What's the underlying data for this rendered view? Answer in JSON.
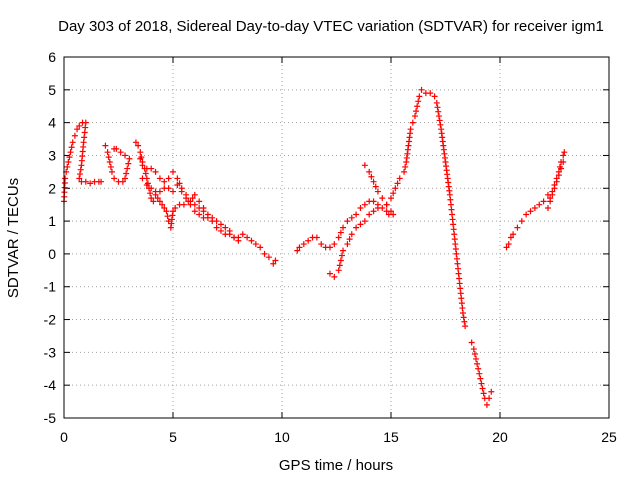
{
  "chart_data": {
    "type": "scatter",
    "title": "Day 303 of 2018, Sidereal Day-to-day VTEC variation (SDTVAR) for receiver igm1",
    "xlabel": "GPS time / hours",
    "ylabel": "SDTVAR / TECUs",
    "xlim": [
      0,
      25
    ],
    "ylim": [
      -5,
      6
    ],
    "x_ticks": [
      0,
      5,
      10,
      15,
      20,
      25
    ],
    "y_ticks": [
      -5,
      -4,
      -3,
      -2,
      -1,
      0,
      1,
      2,
      3,
      4,
      5,
      6
    ],
    "grid": true,
    "marker": "+",
    "color": "#ff0000",
    "series": [
      {
        "name": "SDTVAR",
        "segments": [
          [
            [
              0.0,
              1.6
            ],
            [
              0.05,
              2.3
            ],
            [
              0.1,
              2.5
            ],
            [
              0.2,
              2.8
            ],
            [
              0.3,
              3.1
            ],
            [
              0.4,
              3.4
            ],
            [
              0.5,
              3.6
            ],
            [
              0.6,
              3.8
            ],
            [
              0.7,
              3.9
            ],
            [
              0.85,
              4.0
            ],
            [
              1.0,
              4.0
            ],
            [
              0.9,
              3.4
            ],
            [
              0.8,
              2.7
            ],
            [
              0.7,
              2.3
            ],
            [
              0.8,
              2.2
            ],
            [
              1.0,
              2.2
            ],
            [
              1.2,
              2.15
            ],
            [
              1.4,
              2.2
            ],
            [
              1.6,
              2.2
            ],
            [
              1.7,
              2.2
            ]
          ],
          [
            [
              1.9,
              3.3
            ],
            [
              2.0,
              3.1
            ],
            [
              2.1,
              2.8
            ],
            [
              2.2,
              2.5
            ],
            [
              2.3,
              2.3
            ],
            [
              2.5,
              2.2
            ],
            [
              2.7,
              2.2
            ],
            [
              2.8,
              2.3
            ],
            [
              2.9,
              2.6
            ],
            [
              3.0,
              2.9
            ],
            [
              2.8,
              3.0
            ],
            [
              2.6,
              3.1
            ],
            [
              2.4,
              3.2
            ],
            [
              2.3,
              3.2
            ]
          ],
          [
            [
              3.3,
              3.4
            ],
            [
              3.4,
              3.3
            ],
            [
              3.5,
              3.1
            ],
            [
              3.6,
              2.8
            ],
            [
              3.7,
              2.6
            ],
            [
              3.8,
              2.3
            ],
            [
              3.9,
              2.0
            ],
            [
              4.0,
              1.7
            ],
            [
              4.1,
              1.6
            ],
            [
              4.2,
              1.8
            ],
            [
              4.3,
              1.7
            ],
            [
              4.4,
              1.6
            ],
            [
              4.5,
              1.5
            ],
            [
              4.6,
              1.4
            ],
            [
              4.7,
              1.3
            ],
            [
              4.8,
              1.0
            ],
            [
              4.9,
              0.8
            ],
            [
              5.0,
              1.3
            ],
            [
              5.1,
              1.4
            ],
            [
              5.3,
              1.5
            ],
            [
              5.5,
              1.5
            ],
            [
              5.7,
              1.6
            ],
            [
              5.9,
              1.7
            ],
            [
              6.0,
              1.8
            ],
            [
              6.2,
              1.6
            ],
            [
              6.4,
              1.4
            ],
            [
              6.6,
              1.2
            ],
            [
              6.8,
              1.1
            ],
            [
              7.0,
              1.0
            ],
            [
              7.2,
              0.9
            ],
            [
              7.4,
              0.8
            ],
            [
              7.6,
              0.7
            ],
            [
              7.8,
              0.5
            ],
            [
              8.0,
              0.5
            ],
            [
              8.2,
              0.6
            ],
            [
              8.4,
              0.5
            ],
            [
              8.6,
              0.4
            ],
            [
              8.8,
              0.3
            ],
            [
              9.0,
              0.2
            ],
            [
              9.2,
              0.0
            ],
            [
              9.4,
              -0.1
            ],
            [
              9.6,
              -0.3
            ],
            [
              9.7,
              -0.2
            ]
          ],
          [
            [
              3.5,
              2.9
            ],
            [
              3.6,
              2.7
            ],
            [
              3.8,
              2.6
            ],
            [
              4.0,
              2.6
            ],
            [
              4.2,
              2.5
            ],
            [
              4.4,
              2.3
            ],
            [
              4.6,
              2.2
            ],
            [
              4.8,
              2.3
            ],
            [
              5.0,
              2.5
            ],
            [
              5.2,
              2.3
            ],
            [
              5.4,
              2.0
            ],
            [
              5.6,
              1.8
            ],
            [
              5.8,
              1.6
            ],
            [
              6.0,
              1.5
            ],
            [
              6.2,
              1.4
            ],
            [
              6.4,
              1.3
            ],
            [
              6.6,
              1.1
            ],
            [
              6.8,
              1.0
            ],
            [
              7.0,
              0.8
            ],
            [
              7.2,
              0.7
            ],
            [
              7.4,
              0.6
            ],
            [
              7.6,
              0.6
            ],
            [
              7.8,
              0.5
            ],
            [
              8.0,
              0.4
            ]
          ],
          [
            [
              3.6,
              2.3
            ],
            [
              3.8,
              2.1
            ],
            [
              4.0,
              2.0
            ],
            [
              4.2,
              1.9
            ],
            [
              4.4,
              1.9
            ],
            [
              4.6,
              2.0
            ],
            [
              4.8,
              2.0
            ],
            [
              5.0,
              1.9
            ],
            [
              5.2,
              2.1
            ],
            [
              5.4,
              1.9
            ],
            [
              5.6,
              1.7
            ],
            [
              5.8,
              1.5
            ],
            [
              6.0,
              1.3
            ],
            [
              6.2,
              1.2
            ],
            [
              6.4,
              1.1
            ]
          ],
          [
            [
              10.7,
              0.1
            ],
            [
              10.8,
              0.2
            ],
            [
              11.0,
              0.3
            ],
            [
              11.2,
              0.4
            ],
            [
              11.4,
              0.5
            ],
            [
              11.6,
              0.5
            ],
            [
              11.8,
              0.3
            ],
            [
              12.0,
              0.2
            ],
            [
              12.2,
              0.2
            ],
            [
              12.4,
              0.3
            ],
            [
              12.6,
              0.5
            ],
            [
              12.8,
              0.8
            ],
            [
              13.0,
              1.0
            ],
            [
              13.2,
              1.1
            ],
            [
              13.4,
              1.2
            ],
            [
              13.6,
              1.4
            ],
            [
              13.8,
              1.5
            ],
            [
              14.0,
              1.6
            ],
            [
              14.2,
              1.6
            ],
            [
              14.4,
              1.5
            ],
            [
              14.6,
              1.4
            ],
            [
              14.8,
              1.3
            ],
            [
              14.9,
              1.2
            ]
          ],
          [
            [
              12.2,
              -0.6
            ],
            [
              12.4,
              -0.7
            ],
            [
              12.6,
              -0.5
            ],
            [
              12.7,
              -0.2
            ],
            [
              12.8,
              0.1
            ],
            [
              13.0,
              0.3
            ],
            [
              13.2,
              0.6
            ],
            [
              13.4,
              0.8
            ],
            [
              13.6,
              0.9
            ],
            [
              13.8,
              1.0
            ],
            [
              14.0,
              1.2
            ],
            [
              14.2,
              1.3
            ],
            [
              14.4,
              1.4
            ]
          ],
          [
            [
              13.8,
              2.7
            ],
            [
              14.0,
              2.5
            ],
            [
              14.2,
              2.2
            ],
            [
              14.4,
              1.9
            ],
            [
              14.6,
              1.7
            ],
            [
              14.8,
              1.5
            ],
            [
              15.0,
              1.3
            ],
            [
              15.1,
              1.2
            ]
          ],
          [
            [
              14.8,
              1.5
            ],
            [
              15.0,
              1.7
            ],
            [
              15.2,
              2.0
            ],
            [
              15.4,
              2.3
            ],
            [
              15.6,
              2.5
            ],
            [
              15.7,
              2.8
            ],
            [
              15.8,
              3.3
            ],
            [
              15.9,
              3.8
            ],
            [
              16.0,
              4.0
            ],
            [
              16.1,
              4.2
            ],
            [
              16.2,
              4.5
            ],
            [
              16.3,
              4.8
            ],
            [
              16.4,
              5.0
            ],
            [
              16.6,
              4.9
            ],
            [
              16.8,
              4.9
            ],
            [
              17.0,
              4.8
            ],
            [
              17.1,
              4.6
            ],
            [
              17.2,
              4.2
            ],
            [
              17.3,
              3.8
            ],
            [
              17.4,
              3.3
            ],
            [
              17.5,
              2.8
            ],
            [
              17.6,
              2.3
            ],
            [
              17.7,
              1.8
            ],
            [
              17.8,
              1.2
            ],
            [
              17.9,
              0.6
            ],
            [
              18.0,
              0.0
            ],
            [
              18.1,
              -0.6
            ],
            [
              18.2,
              -1.2
            ],
            [
              18.3,
              -1.8
            ],
            [
              18.4,
              -2.2
            ]
          ],
          [
            [
              18.7,
              -2.7
            ],
            [
              18.8,
              -2.9
            ],
            [
              18.9,
              -3.2
            ],
            [
              19.0,
              -3.5
            ],
            [
              19.1,
              -3.8
            ],
            [
              19.2,
              -4.1
            ],
            [
              19.3,
              -4.4
            ],
            [
              19.4,
              -4.6
            ],
            [
              19.5,
              -4.4
            ],
            [
              19.6,
              -4.2
            ]
          ],
          [
            [
              20.3,
              0.2
            ],
            [
              20.4,
              0.3
            ],
            [
              20.5,
              0.5
            ],
            [
              20.6,
              0.6
            ],
            [
              20.8,
              0.8
            ],
            [
              21.0,
              1.0
            ],
            [
              21.2,
              1.2
            ],
            [
              21.4,
              1.3
            ],
            [
              21.6,
              1.4
            ],
            [
              21.8,
              1.5
            ],
            [
              22.0,
              1.6
            ],
            [
              22.2,
              1.8
            ],
            [
              22.3,
              1.7
            ],
            [
              22.4,
              1.9
            ],
            [
              22.5,
              2.1
            ],
            [
              22.6,
              2.3
            ],
            [
              22.7,
              2.5
            ],
            [
              22.8,
              2.8
            ],
            [
              22.9,
              3.0
            ],
            [
              22.95,
              3.1
            ]
          ],
          [
            [
              22.2,
              1.4
            ],
            [
              22.3,
              1.6
            ],
            [
              22.4,
              1.8
            ],
            [
              22.5,
              2.0
            ],
            [
              22.6,
              2.2
            ],
            [
              22.7,
              2.4
            ],
            [
              22.8,
              2.6
            ],
            [
              22.9,
              2.8
            ]
          ]
        ]
      }
    ]
  }
}
